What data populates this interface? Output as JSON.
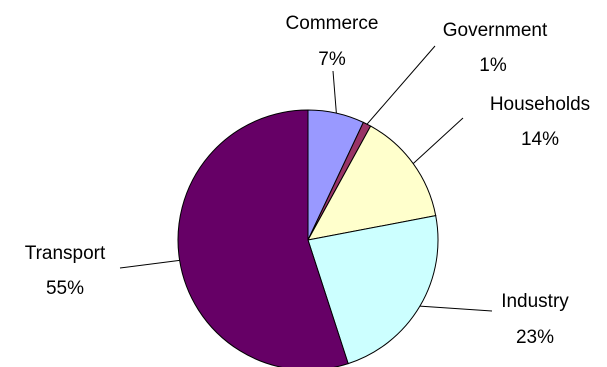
{
  "chart_data": {
    "type": "pie",
    "title": "",
    "start": "12 o'clock",
    "direction": "clockwise",
    "legend": "none",
    "series": [
      {
        "values": [
          7,
          1,
          14,
          23,
          55
        ],
        "slices": [
          {
            "label": "Commerce",
            "value": 7,
            "value_label": "7%",
            "color": "#9999ff"
          },
          {
            "label": "Government",
            "value": 1,
            "value_label": "1%",
            "color": "#993366"
          },
          {
            "label": "Households",
            "value": 14,
            "value_label": "14%",
            "color": "#ffffcc"
          },
          {
            "label": "Industry",
            "value": 23,
            "value_label": "23%",
            "color": "#ccffff"
          },
          {
            "label": "Transport",
            "value": 55,
            "value_label": "55%",
            "color": "#660066"
          }
        ]
      }
    ]
  }
}
